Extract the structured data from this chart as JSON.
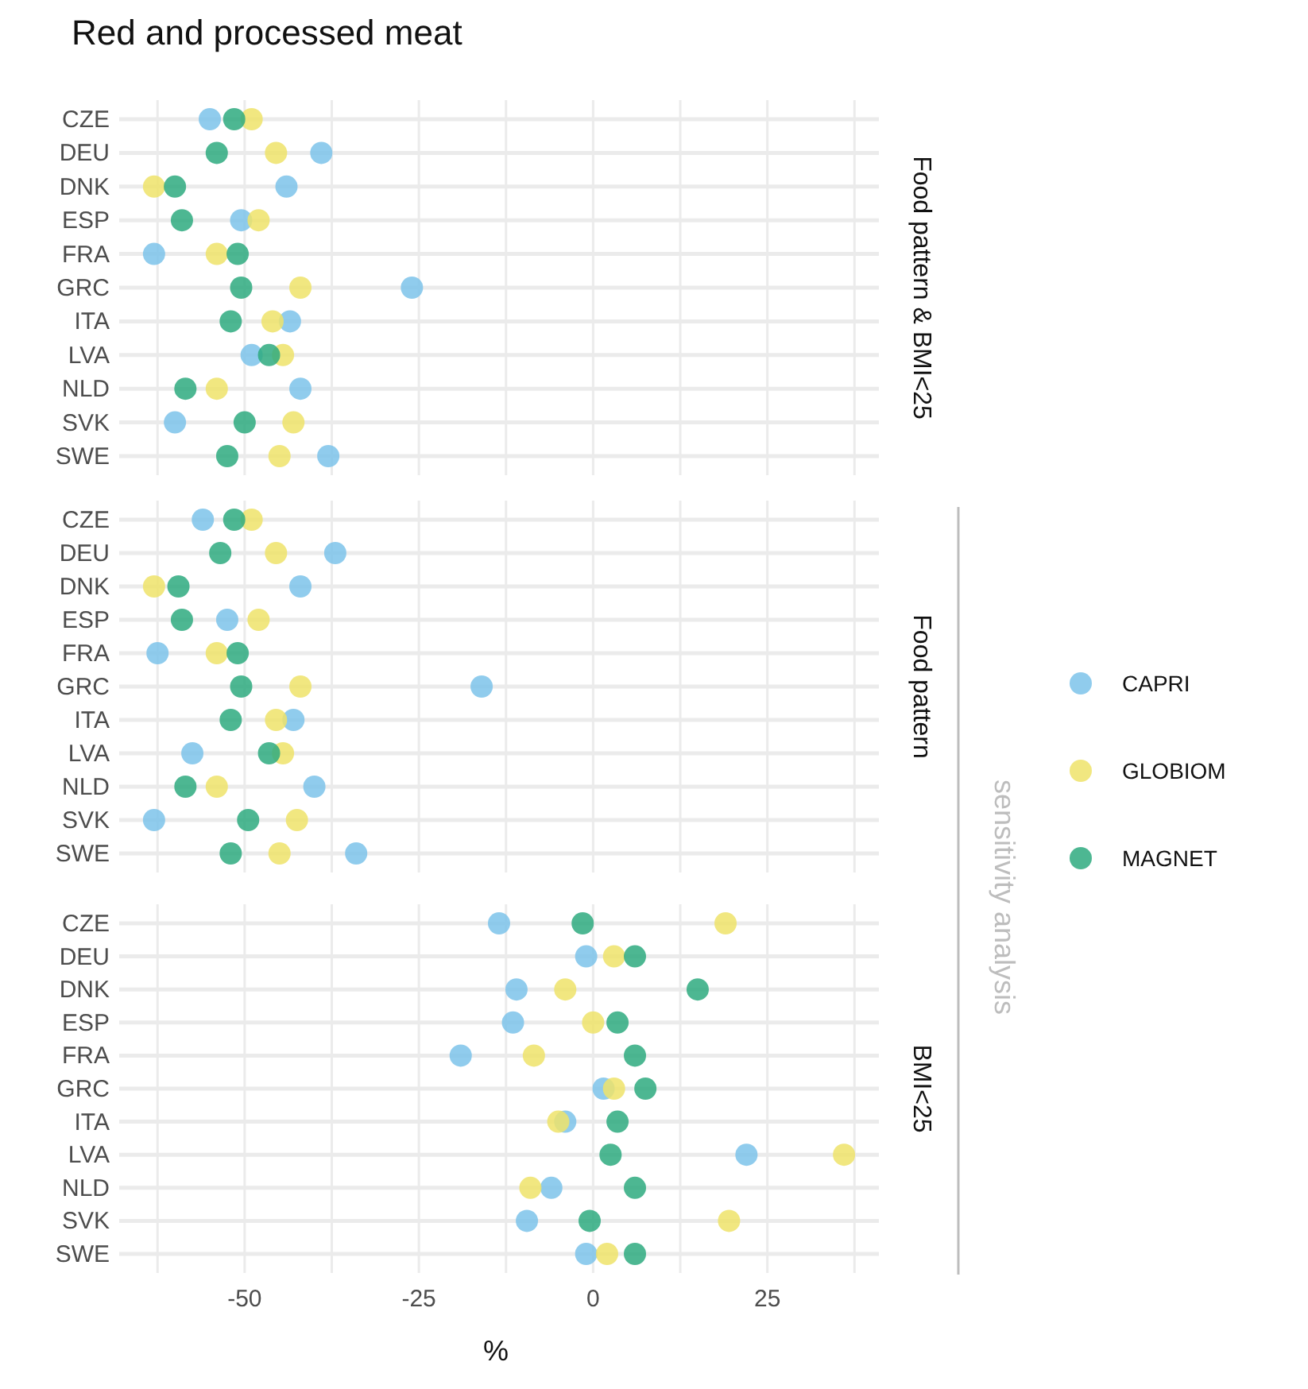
{
  "chart_data": [
    {
      "type": "scatter",
      "title": "Red and processed meat",
      "y2label": "Food pattern & BMI<25",
      "orientation": "horizontal",
      "marker": "circle",
      "grid": true,
      "legend": false,
      "tick_labels": "y",
      "categories": [
        "CZE",
        "DEU",
        "DNK",
        "ESP",
        "FRA",
        "GRC",
        "ITA",
        "LVA",
        "NLD",
        "SVK",
        "SWE"
      ],
      "xlim": [
        -68,
        41
      ],
      "xticks": [
        {
          "value": -62.5,
          "label": null
        },
        -50,
        {
          "value": -37.5,
          "label": null
        },
        -25,
        {
          "value": -12.5,
          "label": null
        },
        0,
        {
          "value": 12.5,
          "label": null
        },
        25,
        {
          "value": 37.5,
          "label": null
        }
      ],
      "series": [
        {
          "color": "#7cc3ea",
          "values": [
            -55,
            -39,
            -44,
            -50.5,
            -63,
            -26,
            -43.5,
            -49,
            -42,
            -60,
            -38
          ]
        },
        {
          "color": "#eee36a",
          "values": [
            -49,
            -45.5,
            -63,
            -48,
            -54,
            -42,
            -46,
            -44.5,
            -54,
            -43,
            -45
          ]
        },
        {
          "color": "#2eaa7f",
          "values": [
            -51.5,
            -54,
            -60,
            -59,
            -51,
            -50.5,
            -52,
            -46.5,
            -58.5,
            -50,
            -52.5
          ]
        }
      ]
    },
    {
      "type": "scatter",
      "y2label": "Food pattern",
      "orientation": "horizontal",
      "marker": "circle",
      "grid": true,
      "legend": "right",
      "tick_labels": "y",
      "annotations": [
        "sensitivity analysis"
      ],
      "categories": [
        "CZE",
        "DEU",
        "DNK",
        "ESP",
        "FRA",
        "GRC",
        "ITA",
        "LVA",
        "NLD",
        "SVK",
        "SWE"
      ],
      "xlim": [
        -68,
        41
      ],
      "xticks": [
        {
          "value": -62.5,
          "label": null
        },
        -50,
        {
          "value": -37.5,
          "label": null
        },
        -25,
        {
          "value": -12.5,
          "label": null
        },
        0,
        {
          "value": 12.5,
          "label": null
        },
        25,
        {
          "value": 37.5,
          "label": null
        }
      ],
      "series": [
        {
          "name": "CAPRI",
          "color": "#7cc3ea",
          "values": [
            -56,
            -37,
            -42,
            -52.5,
            -62.5,
            -16,
            -43,
            -57.5,
            -40,
            -63,
            -34
          ]
        },
        {
          "name": "GLOBIOM",
          "color": "#eee36a",
          "values": [
            -49,
            -45.5,
            -63,
            -48,
            -54,
            -42,
            -45.5,
            -44.5,
            -54,
            -42.5,
            -45
          ]
        },
        {
          "name": "MAGNET",
          "color": "#2eaa7f",
          "values": [
            -51.5,
            -53.5,
            -59.5,
            -59,
            -51,
            -50.5,
            -52,
            -46.5,
            -58.5,
            -49.5,
            -52
          ]
        }
      ]
    },
    {
      "type": "scatter",
      "y2label": "BMI<25",
      "xlabel": "%",
      "orientation": "horizontal",
      "marker": "circle",
      "grid": true,
      "legend": false,
      "categories": [
        "CZE",
        "DEU",
        "DNK",
        "ESP",
        "FRA",
        "GRC",
        "ITA",
        "LVA",
        "NLD",
        "SVK",
        "SWE"
      ],
      "xlim": [
        -68,
        41
      ],
      "xticks": [
        {
          "value": -62.5,
          "label": null
        },
        -50,
        {
          "value": -37.5,
          "label": null
        },
        -25,
        {
          "value": -12.5,
          "label": null
        },
        0,
        {
          "value": 12.5,
          "label": null
        },
        25,
        {
          "value": 37.5,
          "label": null
        }
      ],
      "series": [
        {
          "color": "#7cc3ea",
          "values": [
            -13.5,
            -1,
            -11,
            -11.5,
            -19,
            1.5,
            -4,
            22,
            -6,
            -9.5,
            -1
          ]
        },
        {
          "color": "#eee36a",
          "values": [
            19,
            3,
            -4,
            0,
            -8.5,
            3,
            -5,
            36,
            -9,
            19.5,
            2
          ]
        },
        {
          "color": "#2eaa7f",
          "values": [
            -1.5,
            6,
            15,
            3.5,
            6,
            7.5,
            3.5,
            2.5,
            6,
            -0.5,
            6
          ]
        }
      ]
    }
  ]
}
